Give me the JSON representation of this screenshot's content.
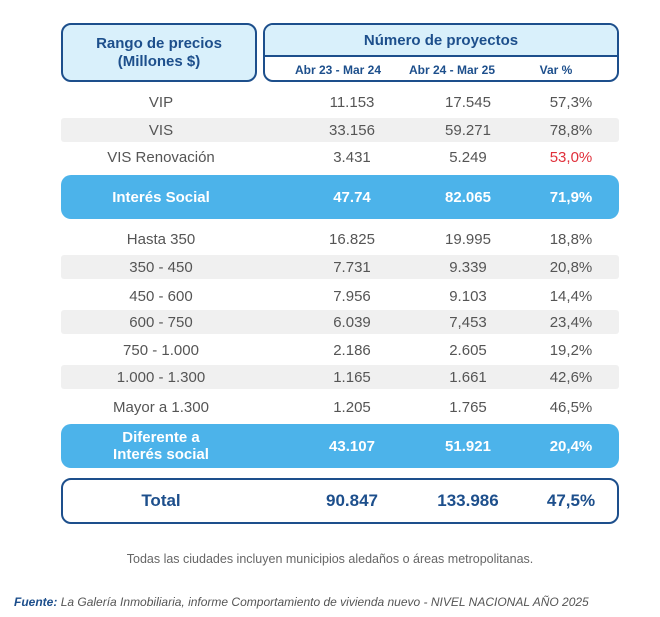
{
  "header": {
    "range_label_line1": "Rango de precios",
    "range_label_line2": "(Millones $)",
    "projects_label": "Número de proyectos",
    "col_period1": "Abr 23 - Mar 24",
    "col_period2": "Abr 24 - Mar 25",
    "col_var": "Var %"
  },
  "social_rows": [
    {
      "label": "VIP",
      "p1": "11.153",
      "p2": "17.545",
      "var": "57,3%"
    },
    {
      "label": "VIS",
      "p1": "33.156",
      "p2": "59.271",
      "var": "78,8%"
    },
    {
      "label": "VIS Renovación",
      "p1": "3.431",
      "p2": "5.249",
      "var": "53,0%"
    }
  ],
  "social_total": {
    "label": "Interés Social",
    "p1": "47.74",
    "p2": "82.065",
    "var": "71,9%"
  },
  "other_rows": [
    {
      "label": "Hasta 350",
      "p1": "16.825",
      "p2": "19.995",
      "var": "18,8%"
    },
    {
      "label": "350 - 450",
      "p1": "7.731",
      "p2": "9.339",
      "var": "20,8%"
    },
    {
      "label": "450 - 600",
      "p1": "7.956",
      "p2": "9.103",
      "var": "14,4%"
    },
    {
      "label": "600 - 750",
      "p1": "6.039",
      "p2": "7,453",
      "var": "23,4%"
    },
    {
      "label": "750 - 1.000",
      "p1": "2.186",
      "p2": "2.605",
      "var": "19,2%"
    },
    {
      "label": "1.000 - 1.300",
      "p1": "1.165",
      "p2": "1.661",
      "var": "42,6%"
    },
    {
      "label": "Mayor a 1.300",
      "p1": "1.205",
      "p2": "1.765",
      "var": "46,5%"
    }
  ],
  "other_total": {
    "label_line1": "Diferente a",
    "label_line2": "Interés social",
    "p1": "43.107",
    "p2": "51.921",
    "var": "20,4%"
  },
  "grand_total": {
    "label": "Total",
    "p1": "90.847",
    "p2": "133.986",
    "var": "47,5%"
  },
  "note": "Todas las ciudades incluyen municipios aledaños o áreas metropolitanas.",
  "source": {
    "label": "Fuente:",
    "text": "La Galería Inmobiliaria, informe Comportamiento de vivienda nuevo - NIVEL NACIONAL AÑO 2025"
  },
  "colors": {
    "dark_blue": "#1d4f8c",
    "band_blue": "#4cb3ea",
    "light_blue": "#d9f0fb",
    "negative_red": "#e0303b"
  }
}
